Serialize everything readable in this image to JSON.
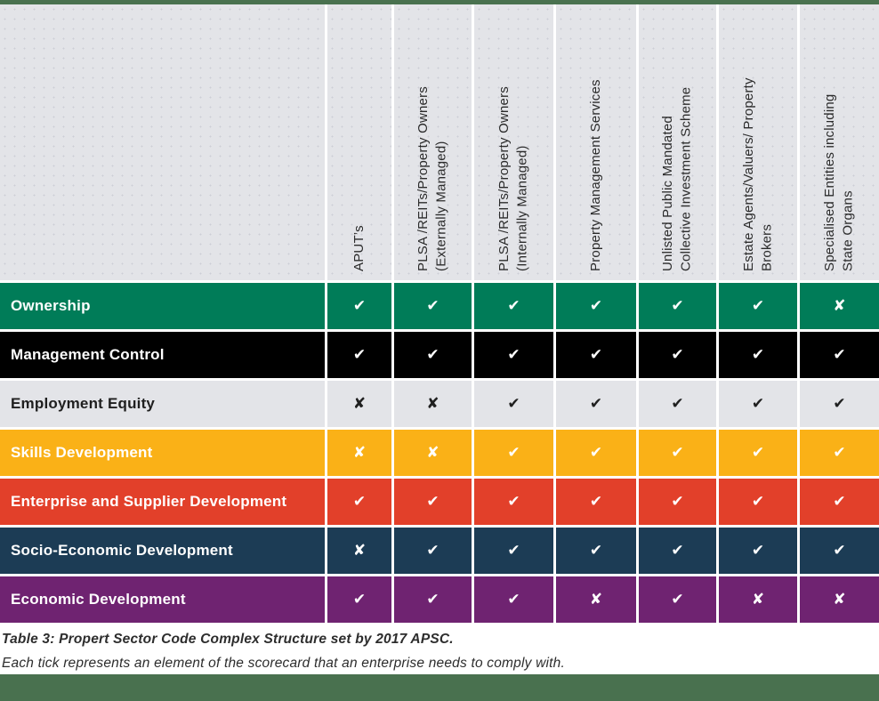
{
  "colors": {
    "accent_bar": "#49714F",
    "header_bg": "#E3E4E8",
    "separator": "#FFFFFF"
  },
  "glyphs": {
    "check": "✔",
    "cross": "✘"
  },
  "table": {
    "columns": [
      "APUT’s",
      "PLSA /REITs/Property Owners\n(Externally Managed)",
      "PLSA /REITs/Property Owners\n(Internally Managed)",
      "Property Management Services",
      "Unlisted Public Mandated\nCollective Investment Scheme",
      "Estate Agents/Valuers/ Property\nBrokers",
      "Specialised Entities including\nState Organs"
    ],
    "rows": [
      {
        "label": "Ownership",
        "bg": "#007C58",
        "fg": "#FFFFFF",
        "marks": [
          "check",
          "check",
          "check",
          "check",
          "check",
          "check",
          "cross"
        ]
      },
      {
        "label": "Management Control",
        "bg": "#000000",
        "fg": "#FFFFFF",
        "marks": [
          "check",
          "check",
          "check",
          "check",
          "check",
          "check",
          "check"
        ]
      },
      {
        "label": "Employment Equity",
        "bg": "#E3E4E8",
        "fg": "#1F1F1F",
        "marks": [
          "cross",
          "cross",
          "check",
          "check",
          "check",
          "check",
          "check"
        ]
      },
      {
        "label": "Skills Development",
        "bg": "#FAB117",
        "fg": "#FFFFFF",
        "marks": [
          "cross",
          "cross",
          "check",
          "check",
          "check",
          "check",
          "check"
        ]
      },
      {
        "label": "Enterprise and Supplier Development",
        "bg": "#E2402A",
        "fg": "#FFFFFF",
        "marks": [
          "check",
          "check",
          "check",
          "check",
          "check",
          "check",
          "check"
        ]
      },
      {
        "label": "Socio-Economic Development",
        "bg": "#1C3C55",
        "fg": "#FFFFFF",
        "marks": [
          "cross",
          "check",
          "check",
          "check",
          "check",
          "check",
          "check"
        ]
      },
      {
        "label": "Economic Development",
        "bg": "#6F2371",
        "fg": "#FFFFFF",
        "marks": [
          "check",
          "check",
          "check",
          "cross",
          "check",
          "cross",
          "cross"
        ]
      }
    ]
  },
  "caption": {
    "title": "Table 3: Propert Sector Code Complex Structure set by 2017 APSC.",
    "note": "Each tick represents an element of the scorecard that an enterprise needs to comply with."
  }
}
